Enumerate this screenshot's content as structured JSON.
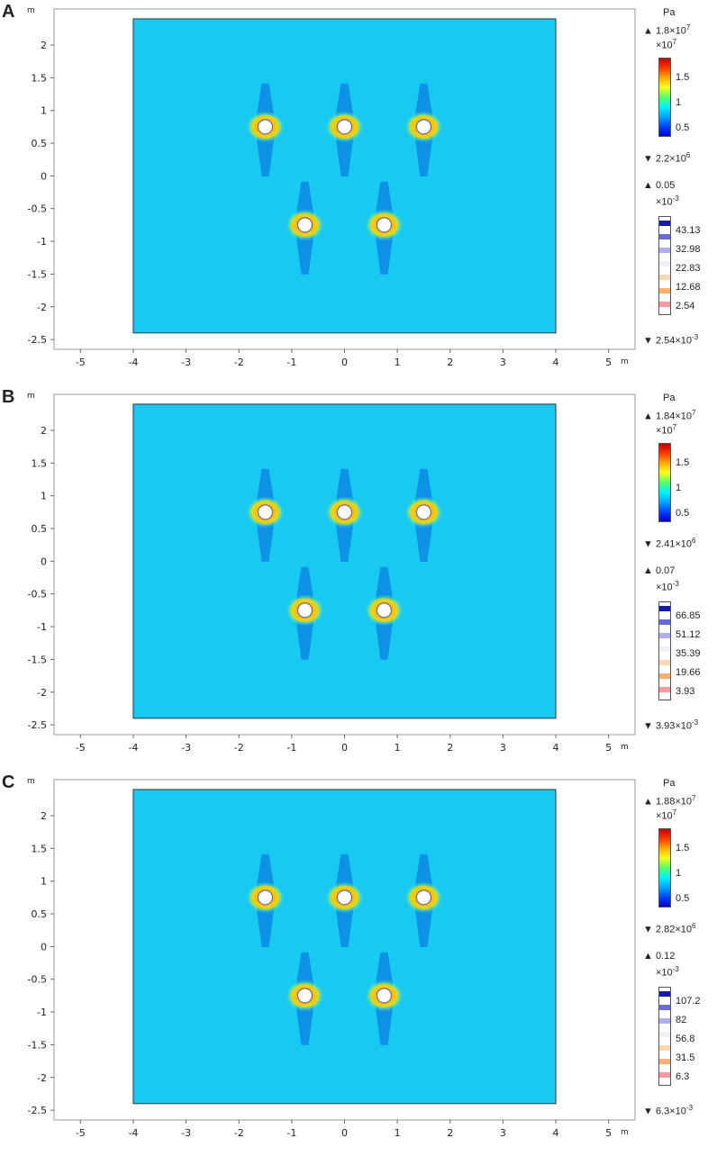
{
  "panels": [
    {
      "letter": "A",
      "axis_unit": "m",
      "x_ticks": [
        "-5",
        "-4",
        "-3",
        "-2",
        "-1",
        "0",
        "1",
        "2",
        "3",
        "4",
        "5"
      ],
      "y_ticks": [
        "2",
        "1.5",
        "1",
        "0.5",
        "0",
        "-0.5",
        "-1",
        "-1.5",
        "-2",
        "-2.5"
      ],
      "legend": {
        "unit": "Pa",
        "max_label": "1.8×10",
        "max_exp": "7",
        "scale_label": "×10",
        "scale_exp": "7",
        "ticks": [
          "1.5",
          "1",
          "0.5"
        ],
        "min_label": "2.2×10",
        "min_exp": "6",
        "max2_label": "0.05",
        "scale2_label": "×10",
        "scale2_exp": "-3",
        "ticks2": [
          "43.13",
          "32.98",
          "22.83",
          "12.68",
          "2.54"
        ],
        "min2_label": "2.54×10",
        "min2_exp": "-3"
      }
    },
    {
      "letter": "B",
      "axis_unit": "m",
      "x_ticks": [
        "-5",
        "-4",
        "-3",
        "-2",
        "-1",
        "0",
        "1",
        "2",
        "3",
        "4",
        "5"
      ],
      "y_ticks": [
        "2",
        "1.5",
        "1",
        "0.5",
        "0",
        "-0.5",
        "-1",
        "-1.5",
        "-2",
        "-2.5"
      ],
      "legend": {
        "unit": "Pa",
        "max_label": "1.84×10",
        "max_exp": "7",
        "scale_label": "×10",
        "scale_exp": "7",
        "ticks": [
          "1.5",
          "1",
          "0.5"
        ],
        "min_label": "2.41×10",
        "min_exp": "6",
        "max2_label": "0.07",
        "scale2_label": "×10",
        "scale2_exp": "-3",
        "ticks2": [
          "66.85",
          "51.12",
          "35.39",
          "19.66",
          "3.93"
        ],
        "min2_label": "3.93×10",
        "min2_exp": "-3"
      }
    },
    {
      "letter": "C",
      "axis_unit": "m",
      "x_ticks": [
        "-5",
        "-4",
        "-3",
        "-2",
        "-1",
        "0",
        "1",
        "2",
        "3",
        "4",
        "5"
      ],
      "y_ticks": [
        "2",
        "1.5",
        "1",
        "0.5",
        "0",
        "-0.5",
        "-1",
        "-1.5",
        "-2",
        "-2.5"
      ],
      "legend": {
        "unit": "Pa",
        "max_label": "1.88×10",
        "max_exp": "7",
        "scale_label": "×10",
        "scale_exp": "7",
        "ticks": [
          "1.5",
          "1",
          "0.5"
        ],
        "min_label": "2.82×10",
        "min_exp": "6",
        "max2_label": "0.12",
        "scale2_label": "×10",
        "scale2_exp": "-3",
        "ticks2": [
          "107.2",
          "82",
          "56.8",
          "31.5",
          "6.3"
        ],
        "min2_label": "6.3×10",
        "min2_exp": "-3"
      }
    }
  ],
  "colors": {
    "field": "#18c9f2",
    "field_dark": "#0a7fe0",
    "hot": "#ff8c00",
    "hole": "#ffffff"
  }
}
